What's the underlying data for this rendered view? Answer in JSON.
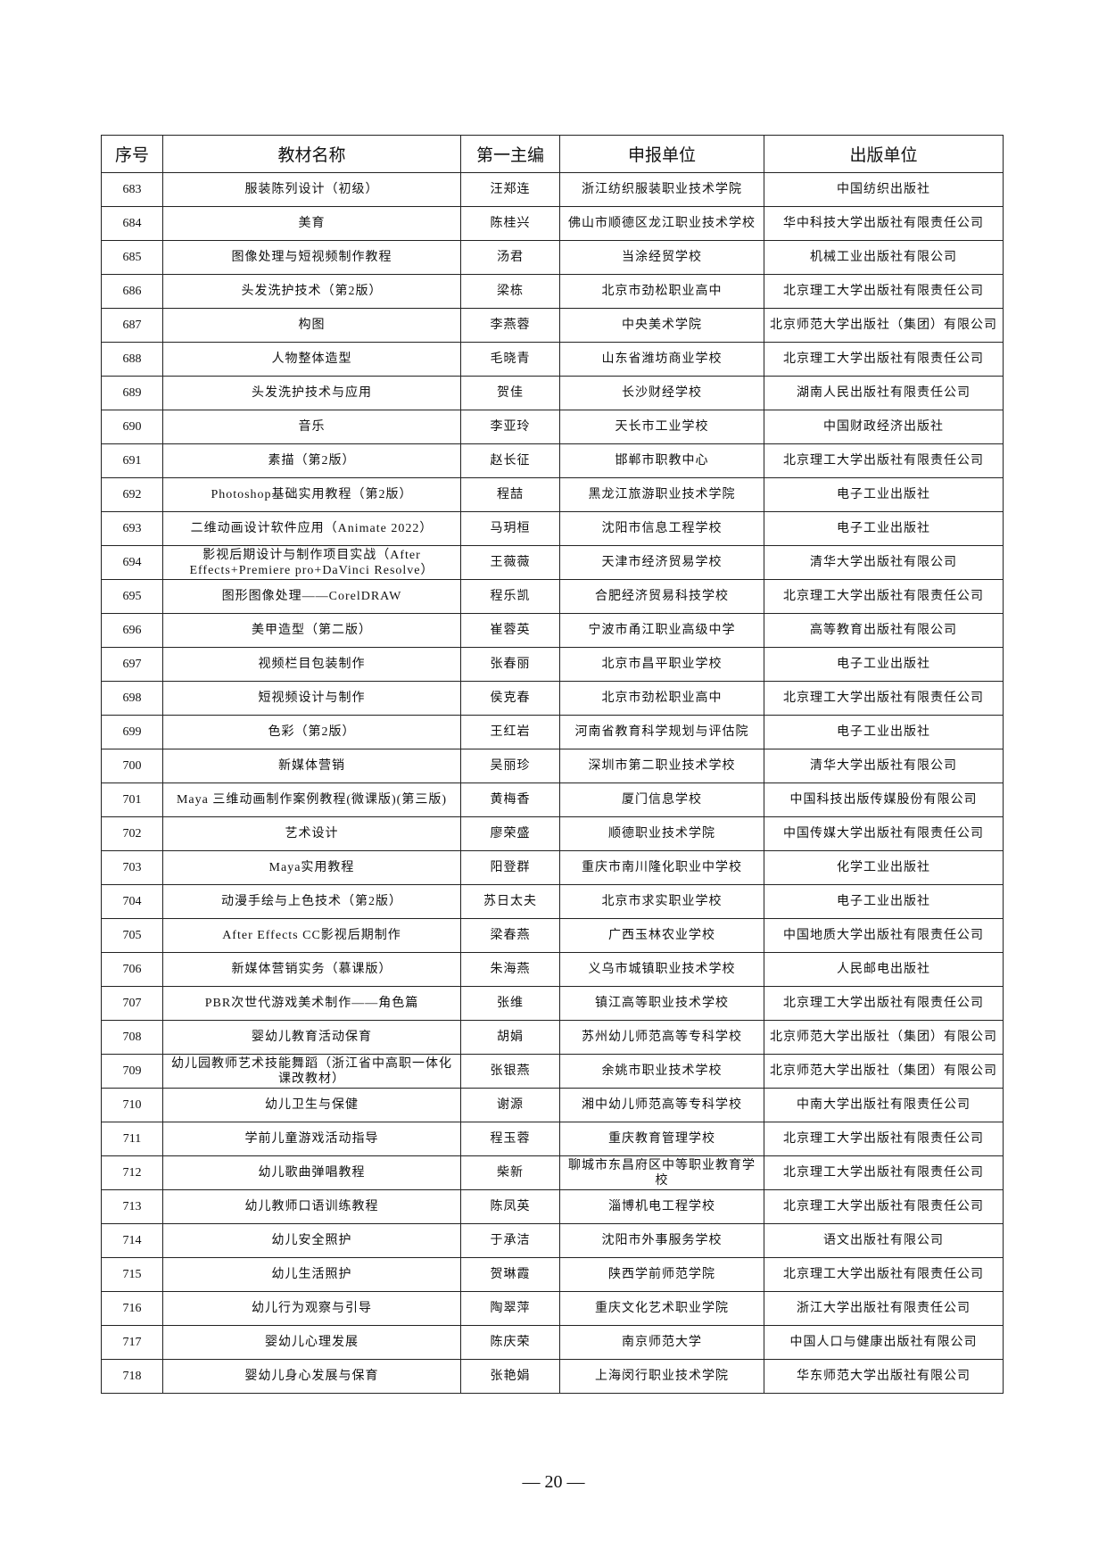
{
  "table": {
    "headers": [
      "序号",
      "教材名称",
      "第一主编",
      "申报单位",
      "出版单位"
    ],
    "rows": [
      [
        "683",
        "服装陈列设计（初级）",
        "汪郑连",
        "浙江纺织服装职业技术学院",
        "中国纺织出版社"
      ],
      [
        "684",
        "美育",
        "陈桂兴",
        "佛山市顺德区龙江职业技术学校",
        "华中科技大学出版社有限责任公司"
      ],
      [
        "685",
        "图像处理与短视频制作教程",
        "汤君",
        "当涂经贸学校",
        "机械工业出版社有限公司"
      ],
      [
        "686",
        "头发洗护技术（第2版）",
        "梁栋",
        "北京市劲松职业高中",
        "北京理工大学出版社有限责任公司"
      ],
      [
        "687",
        "构图",
        "李燕蓉",
        "中央美术学院",
        "北京师范大学出版社（集团）有限公司"
      ],
      [
        "688",
        "人物整体造型",
        "毛晓青",
        "山东省潍坊商业学校",
        "北京理工大学出版社有限责任公司"
      ],
      [
        "689",
        "头发洗护技术与应用",
        "贺佳",
        "长沙财经学校",
        "湖南人民出版社有限责任公司"
      ],
      [
        "690",
        "音乐",
        "李亚玲",
        "天长市工业学校",
        "中国财政经济出版社"
      ],
      [
        "691",
        "素描（第2版）",
        "赵长征",
        "邯郸市职教中心",
        "北京理工大学出版社有限责任公司"
      ],
      [
        "692",
        "Photoshop基础实用教程（第2版）",
        "程喆",
        "黑龙江旅游职业技术学院",
        "电子工业出版社"
      ],
      [
        "693",
        "二维动画设计软件应用（Animate 2022）",
        "马玥桓",
        "沈阳市信息工程学校",
        "电子工业出版社"
      ],
      [
        "694",
        "影视后期设计与制作项目实战（After Effects+Premiere pro+DaVinci Resolve）",
        "王薇薇",
        "天津市经济贸易学校",
        "清华大学出版社有限公司"
      ],
      [
        "695",
        "图形图像处理——CorelDRAW",
        "程乐凯",
        "合肥经济贸易科技学校",
        "北京理工大学出版社有限责任公司"
      ],
      [
        "696",
        "美甲造型（第二版）",
        "崔蓉英",
        "宁波市甬江职业高级中学",
        "高等教育出版社有限公司"
      ],
      [
        "697",
        "视频栏目包装制作",
        "张春丽",
        "北京市昌平职业学校",
        "电子工业出版社"
      ],
      [
        "698",
        "短视频设计与制作",
        "侯克春",
        "北京市劲松职业高中",
        "北京理工大学出版社有限责任公司"
      ],
      [
        "699",
        "色彩（第2版）",
        "王红岩",
        "河南省教育科学规划与评估院",
        "电子工业出版社"
      ],
      [
        "700",
        "新媒体营销",
        "吴丽珍",
        "深圳市第二职业技术学校",
        "清华大学出版社有限公司"
      ],
      [
        "701",
        "Maya 三维动画制作案例教程(微课版)(第三版)",
        "黄梅香",
        "厦门信息学校",
        "中国科技出版传媒股份有限公司"
      ],
      [
        "702",
        "艺术设计",
        "廖荣盛",
        "顺德职业技术学院",
        "中国传媒大学出版社有限责任公司"
      ],
      [
        "703",
        "Maya实用教程",
        "阳登群",
        "重庆市南川隆化职业中学校",
        "化学工业出版社"
      ],
      [
        "704",
        "动漫手绘与上色技术（第2版）",
        "苏日太夫",
        "北京市求实职业学校",
        "电子工业出版社"
      ],
      [
        "705",
        "After Effects CC影视后期制作",
        "梁春燕",
        "广西玉林农业学校",
        "中国地质大学出版社有限责任公司"
      ],
      [
        "706",
        "新媒体营销实务（慕课版）",
        "朱海燕",
        "义乌市城镇职业技术学校",
        "人民邮电出版社"
      ],
      [
        "707",
        "PBR次世代游戏美术制作——角色篇",
        "张维",
        "镇江高等职业技术学校",
        "北京理工大学出版社有限责任公司"
      ],
      [
        "708",
        "婴幼儿教育活动保育",
        "胡娟",
        "苏州幼儿师范高等专科学校",
        "北京师范大学出版社（集团）有限公司"
      ],
      [
        "709",
        "幼儿园教师艺术技能舞蹈（浙江省中高职一体化课改教材）",
        "张银燕",
        "余姚市职业技术学校",
        "北京师范大学出版社（集团）有限公司"
      ],
      [
        "710",
        "幼儿卫生与保健",
        "谢源",
        "湘中幼儿师范高等专科学校",
        "中南大学出版社有限责任公司"
      ],
      [
        "711",
        "学前儿童游戏活动指导",
        "程玉蓉",
        "重庆教育管理学校",
        "北京理工大学出版社有限责任公司"
      ],
      [
        "712",
        "幼儿歌曲弹唱教程",
        "柴新",
        "聊城市东昌府区中等职业教育学校",
        "北京理工大学出版社有限责任公司"
      ],
      [
        "713",
        "幼儿教师口语训练教程",
        "陈凤英",
        "淄博机电工程学校",
        "北京理工大学出版社有限责任公司"
      ],
      [
        "714",
        "幼儿安全照护",
        "于承洁",
        "沈阳市外事服务学校",
        "语文出版社有限公司"
      ],
      [
        "715",
        "幼儿生活照护",
        "贺琳霞",
        "陕西学前师范学院",
        "北京理工大学出版社有限责任公司"
      ],
      [
        "716",
        "幼儿行为观察与引导",
        "陶翠萍",
        "重庆文化艺术职业学院",
        "浙江大学出版社有限责任公司"
      ],
      [
        "717",
        "婴幼儿心理发展",
        "陈庆荣",
        "南京师范大学",
        "中国人口与健康出版社有限公司"
      ],
      [
        "718",
        "婴幼儿身心发展与保育",
        "张艳娟",
        "上海闵行职业技术学院",
        "华东师范大学出版社有限公司"
      ]
    ]
  },
  "footer": {
    "page_number": "— 20 —"
  }
}
